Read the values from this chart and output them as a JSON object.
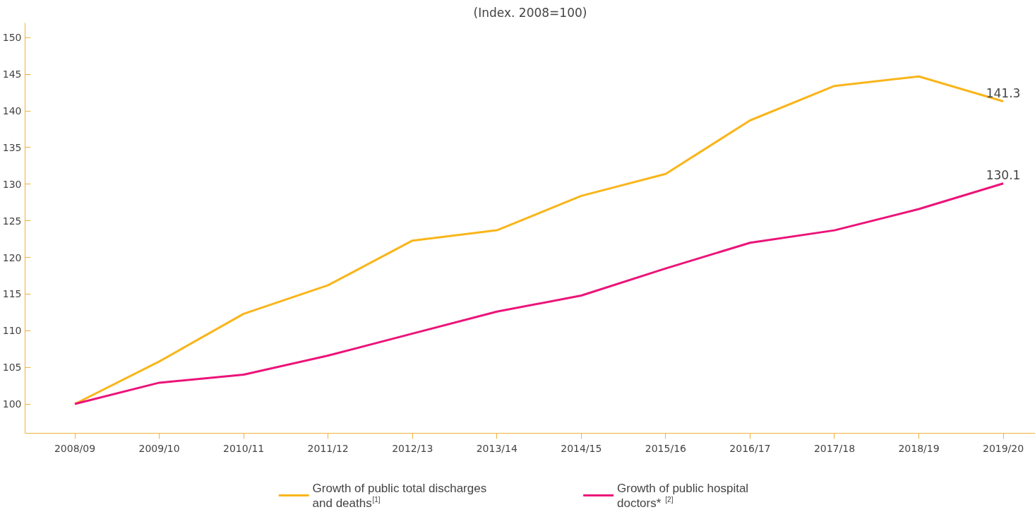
{
  "chart_data": {
    "type": "line",
    "title": "(Index. 2008=100)",
    "categories": [
      "2008/09",
      "2009/10",
      "2010/11",
      "2011/12",
      "2012/13",
      "2013/14",
      "2014/15",
      "2015/16",
      "2016/17",
      "2017/18",
      "2018/19",
      "2019/20"
    ],
    "series": [
      {
        "name": "Growth of public total discharges and deaths$^{[1]}$",
        "color": "#f9b51a",
        "values": [
          100,
          105.8,
          112.3,
          116.2,
          122.3,
          123.7,
          128.4,
          131.4,
          138.7,
          143.4,
          144.7,
          141.3
        ]
      },
      {
        "name": "Growth of public hospital doctors*$^{[2]}$",
        "color": "#ec1379",
        "values": [
          100,
          102.9,
          104.0,
          106.6,
          109.6,
          112.6,
          114.8,
          118.5,
          122.0,
          123.7,
          126.6,
          130.1
        ]
      }
    ],
    "annotations": [
      {
        "text": "141.3",
        "x": "2019/20",
        "y": 141.3
      },
      {
        "text": "130.1",
        "x": "2019/20",
        "y": 130.1
      }
    ],
    "ylim": [
      96,
      152
    ],
    "yticks": [
      100,
      105,
      110,
      115,
      120,
      125,
      130,
      135,
      140,
      145,
      150
    ],
    "grid": false,
    "legend": "bottom",
    "marker": "none",
    "line_style": "solid"
  }
}
